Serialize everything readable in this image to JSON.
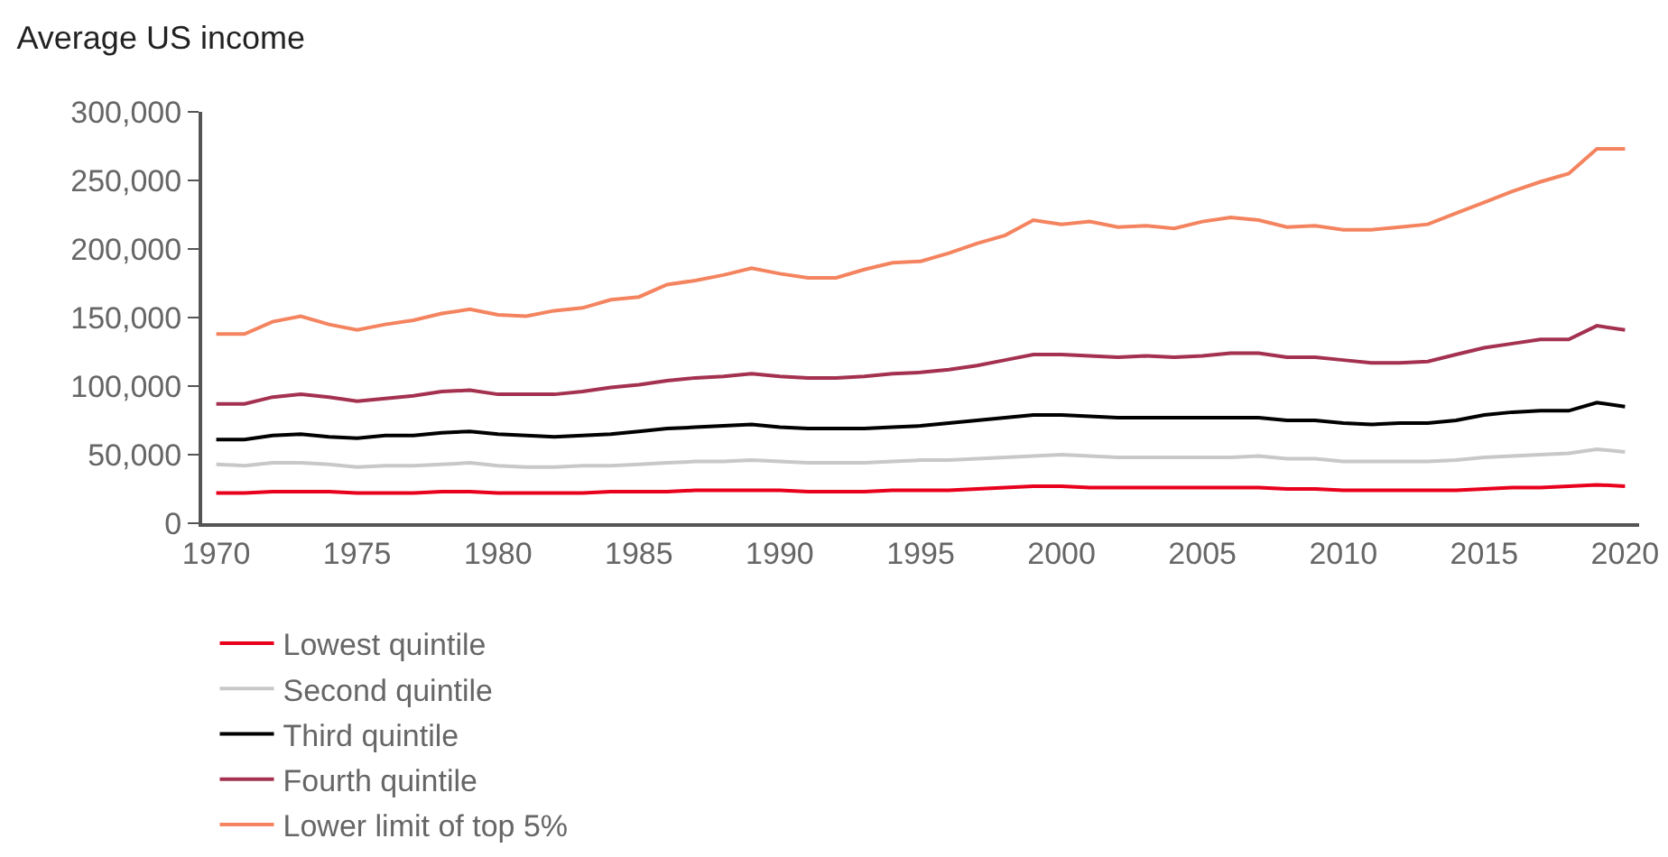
{
  "chart_data": {
    "type": "line",
    "title": "Average US income",
    "x": [
      1970,
      1971,
      1972,
      1973,
      1974,
      1975,
      1976,
      1977,
      1978,
      1979,
      1980,
      1981,
      1982,
      1983,
      1984,
      1985,
      1986,
      1987,
      1988,
      1989,
      1990,
      1991,
      1992,
      1993,
      1994,
      1995,
      1996,
      1997,
      1998,
      1999,
      2000,
      2001,
      2002,
      2003,
      2004,
      2005,
      2006,
      2007,
      2008,
      2009,
      2010,
      2011,
      2012,
      2013,
      2014,
      2015,
      2016,
      2017,
      2018,
      2019,
      2020
    ],
    "series": [
      {
        "name": "Lowest quintile",
        "color": "#e8001c",
        "values": [
          22000,
          22000,
          23000,
          23000,
          23000,
          22000,
          22000,
          22000,
          23000,
          23000,
          22000,
          22000,
          22000,
          22000,
          23000,
          23000,
          23000,
          24000,
          24000,
          24000,
          24000,
          23000,
          23000,
          23000,
          24000,
          24000,
          24000,
          25000,
          26000,
          27000,
          27000,
          26000,
          26000,
          26000,
          26000,
          26000,
          26000,
          26000,
          25000,
          25000,
          24000,
          24000,
          24000,
          24000,
          24000,
          25000,
          26000,
          26000,
          27000,
          28000,
          27000
        ]
      },
      {
        "name": "Second quintile",
        "color": "#c8c8c8",
        "values": [
          43000,
          42000,
          44000,
          44000,
          43000,
          41000,
          42000,
          42000,
          43000,
          44000,
          42000,
          41000,
          41000,
          42000,
          42000,
          43000,
          44000,
          45000,
          45000,
          46000,
          45000,
          44000,
          44000,
          44000,
          45000,
          46000,
          46000,
          47000,
          48000,
          49000,
          50000,
          49000,
          48000,
          48000,
          48000,
          48000,
          48000,
          49000,
          47000,
          47000,
          45000,
          45000,
          45000,
          45000,
          46000,
          48000,
          49000,
          50000,
          51000,
          54000,
          52000
        ]
      },
      {
        "name": "Third quintile",
        "color": "#000000",
        "values": [
          61000,
          61000,
          64000,
          65000,
          63000,
          62000,
          64000,
          64000,
          66000,
          67000,
          65000,
          64000,
          63000,
          64000,
          65000,
          67000,
          69000,
          70000,
          71000,
          72000,
          70000,
          69000,
          69000,
          69000,
          70000,
          71000,
          73000,
          75000,
          77000,
          79000,
          79000,
          78000,
          77000,
          77000,
          77000,
          77000,
          77000,
          77000,
          75000,
          75000,
          73000,
          72000,
          73000,
          73000,
          75000,
          79000,
          81000,
          82000,
          82000,
          88000,
          85000
        ]
      },
      {
        "name": "Fourth quintile",
        "color": "#a3314f",
        "values": [
          87000,
          87000,
          92000,
          94000,
          92000,
          89000,
          91000,
          93000,
          96000,
          97000,
          94000,
          94000,
          94000,
          96000,
          99000,
          101000,
          104000,
          106000,
          107000,
          109000,
          107000,
          106000,
          106000,
          107000,
          109000,
          110000,
          112000,
          115000,
          119000,
          123000,
          123000,
          122000,
          121000,
          122000,
          121000,
          122000,
          124000,
          124000,
          121000,
          121000,
          119000,
          117000,
          117000,
          118000,
          123000,
          128000,
          131000,
          134000,
          134000,
          144000,
          141000
        ]
      },
      {
        "name": "Lower limit of top 5%",
        "color": "#f4845f",
        "values": [
          138000,
          138000,
          147000,
          151000,
          145000,
          141000,
          145000,
          148000,
          153000,
          156000,
          152000,
          151000,
          155000,
          157000,
          163000,
          165000,
          174000,
          177000,
          181000,
          186000,
          182000,
          179000,
          179000,
          185000,
          190000,
          191000,
          197000,
          204000,
          210000,
          221000,
          218000,
          220000,
          216000,
          217000,
          215000,
          220000,
          223000,
          221000,
          216000,
          217000,
          214000,
          214000,
          216000,
          218000,
          226000,
          234000,
          242000,
          249000,
          255000,
          273000,
          273000
        ]
      }
    ],
    "xlim": [
      1969.5,
      2020.5
    ],
    "xticks": [
      1970,
      1975,
      1980,
      1985,
      1990,
      1995,
      2000,
      2005,
      2010,
      2015,
      2020
    ],
    "ylim": [
      0,
      300000
    ],
    "yticks": [
      {
        "value": 0,
        "label": "0"
      },
      {
        "value": 50000,
        "label": "50,000"
      },
      {
        "value": 100000,
        "label": "100,000"
      },
      {
        "value": 150000,
        "label": "150,000"
      },
      {
        "value": 200000,
        "label": "200,000"
      },
      {
        "value": 250000,
        "label": "250,000"
      },
      {
        "value": 300000,
        "label": "300,000"
      }
    ],
    "grid": false,
    "legend": "bottom",
    "marker": "none",
    "line_style": "solid"
  }
}
